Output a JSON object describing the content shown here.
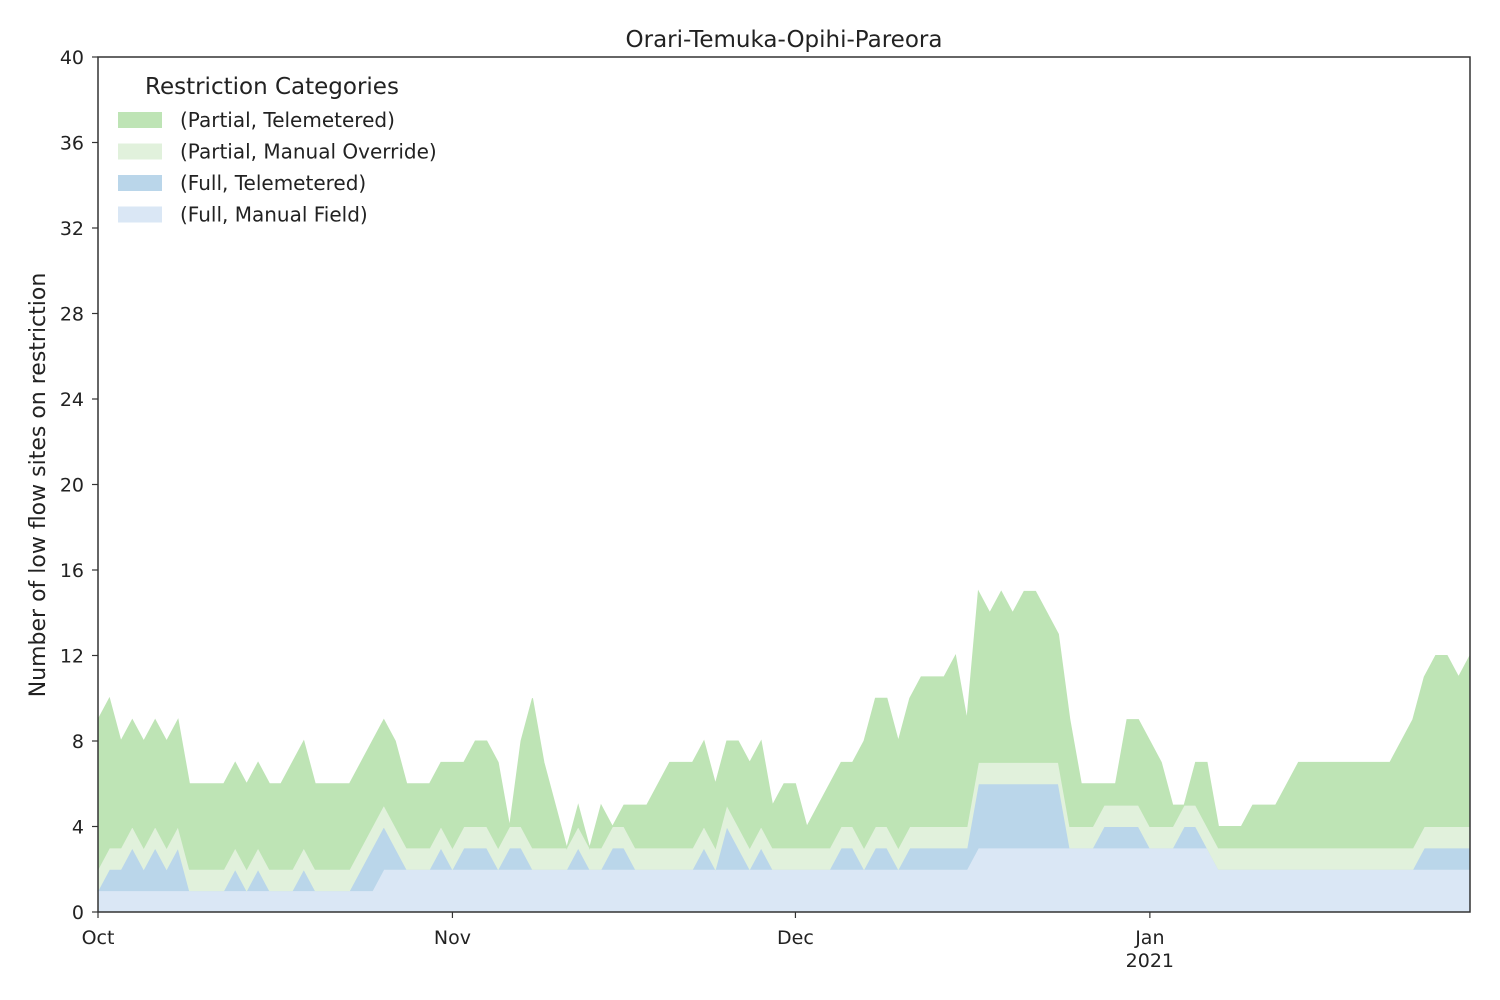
{
  "chart_data": {
    "type": "area",
    "stacked": true,
    "title": "Orari-Temuka-Opihi-Pareora",
    "xlabel": "",
    "ylabel": "Number of low flow sites on restriction",
    "ylim": [
      0,
      40
    ],
    "yticks": [
      0,
      4,
      8,
      12,
      16,
      20,
      24,
      28,
      32,
      36,
      40
    ],
    "xlim": [
      "2020-10-01",
      "2021-01-29"
    ],
    "xticks": [
      {
        "date": "2020-10-01",
        "label": "Oct",
        "sublabel": ""
      },
      {
        "date": "2020-11-01",
        "label": "Nov",
        "sublabel": ""
      },
      {
        "date": "2020-12-01",
        "label": "Dec",
        "sublabel": ""
      },
      {
        "date": "2021-01-01",
        "label": "Jan",
        "sublabel": "2021"
      }
    ],
    "grid": false,
    "legend": {
      "title": "Restriction Categories",
      "placement": "top-left"
    },
    "x": [
      "2020-10-01",
      "2020-10-02",
      "2020-10-03",
      "2020-10-04",
      "2020-10-05",
      "2020-10-06",
      "2020-10-07",
      "2020-10-08",
      "2020-10-09",
      "2020-10-10",
      "2020-10-11",
      "2020-10-12",
      "2020-10-13",
      "2020-10-14",
      "2020-10-15",
      "2020-10-16",
      "2020-10-17",
      "2020-10-18",
      "2020-10-19",
      "2020-10-20",
      "2020-10-21",
      "2020-10-22",
      "2020-10-23",
      "2020-10-24",
      "2020-10-25",
      "2020-10-26",
      "2020-10-27",
      "2020-10-28",
      "2020-10-29",
      "2020-10-30",
      "2020-10-31",
      "2020-11-01",
      "2020-11-02",
      "2020-11-03",
      "2020-11-04",
      "2020-11-05",
      "2020-11-06",
      "2020-11-07",
      "2020-11-08",
      "2020-11-09",
      "2020-11-10",
      "2020-11-11",
      "2020-11-12",
      "2020-11-13",
      "2020-11-14",
      "2020-11-15",
      "2020-11-16",
      "2020-11-17",
      "2020-11-18",
      "2020-11-19",
      "2020-11-20",
      "2020-11-21",
      "2020-11-22",
      "2020-11-23",
      "2020-11-24",
      "2020-11-25",
      "2020-11-26",
      "2020-11-27",
      "2020-11-28",
      "2020-11-29",
      "2020-11-30",
      "2020-12-01",
      "2020-12-02",
      "2020-12-03",
      "2020-12-04",
      "2020-12-05",
      "2020-12-06",
      "2020-12-07",
      "2020-12-08",
      "2020-12-09",
      "2020-12-10",
      "2020-12-11",
      "2020-12-12",
      "2020-12-13",
      "2020-12-14",
      "2020-12-15",
      "2020-12-16",
      "2020-12-17",
      "2020-12-18",
      "2020-12-19",
      "2020-12-20",
      "2020-12-21",
      "2020-12-22",
      "2020-12-23",
      "2020-12-24",
      "2020-12-25",
      "2020-12-26",
      "2020-12-27",
      "2020-12-28",
      "2020-12-29",
      "2020-12-30",
      "2020-12-31",
      "2021-01-01",
      "2021-01-02",
      "2021-01-03",
      "2021-01-04",
      "2021-01-05",
      "2021-01-06",
      "2021-01-07",
      "2021-01-08",
      "2021-01-09",
      "2021-01-10",
      "2021-01-11",
      "2021-01-12",
      "2021-01-13",
      "2021-01-14",
      "2021-01-15",
      "2021-01-16",
      "2021-01-17",
      "2021-01-18",
      "2021-01-19",
      "2021-01-20",
      "2021-01-21",
      "2021-01-22",
      "2021-01-23",
      "2021-01-24",
      "2021-01-25",
      "2021-01-26",
      "2021-01-27",
      "2021-01-28",
      "2021-01-29"
    ],
    "series": [
      {
        "name": "(Full, Manual Field)",
        "color": "#dae7f5",
        "values": [
          1,
          1,
          1,
          1,
          1,
          1,
          1,
          1,
          1,
          1,
          1,
          1,
          1,
          1,
          1,
          1,
          1,
          1,
          1,
          1,
          1,
          1,
          1,
          1,
          1,
          2,
          2,
          2,
          2,
          2,
          2,
          2,
          2,
          2,
          2,
          2,
          2,
          2,
          2,
          2,
          2,
          2,
          2,
          2,
          2,
          2,
          2,
          2,
          2,
          2,
          2,
          2,
          2,
          2,
          2,
          2,
          2,
          2,
          2,
          2,
          2,
          2,
          2,
          2,
          2,
          2,
          2,
          2,
          2,
          2,
          2,
          2,
          2,
          2,
          2,
          2,
          2,
          3,
          3,
          3,
          3,
          3,
          3,
          3,
          3,
          3,
          3,
          3,
          3,
          3,
          3,
          3,
          3,
          3,
          3,
          3,
          3,
          3,
          2,
          2,
          2,
          2,
          2,
          2,
          2,
          2,
          2,
          2,
          2,
          2,
          2,
          2,
          2,
          2,
          2,
          2,
          2,
          2,
          2,
          2,
          2
        ]
      },
      {
        "name": "(Full, Telemetered)",
        "color": "#bad6ea",
        "values": [
          0,
          1,
          1,
          2,
          1,
          2,
          1,
          2,
          0,
          0,
          0,
          0,
          1,
          0,
          1,
          0,
          0,
          0,
          1,
          0,
          0,
          0,
          0,
          1,
          2,
          2,
          1,
          0,
          0,
          0,
          1,
          0,
          1,
          1,
          1,
          0,
          1,
          1,
          0,
          0,
          0,
          0,
          1,
          0,
          0,
          1,
          1,
          0,
          0,
          0,
          0,
          0,
          0,
          1,
          0,
          2,
          1,
          0,
          1,
          0,
          0,
          0,
          0,
          0,
          0,
          1,
          1,
          0,
          1,
          1,
          0,
          1,
          1,
          1,
          1,
          1,
          1,
          3,
          3,
          3,
          3,
          3,
          3,
          3,
          3,
          0,
          0,
          0,
          1,
          1,
          1,
          1,
          0,
          0,
          0,
          1,
          1,
          0,
          0,
          0,
          0,
          0,
          0,
          0,
          0,
          0,
          0,
          0,
          0,
          0,
          0,
          0,
          0,
          0,
          0,
          0,
          1,
          1,
          1,
          1,
          1
        ]
      },
      {
        "name": "(Partial, Manual Override)",
        "color": "#e1f1dc",
        "values": [
          1,
          1,
          1,
          1,
          1,
          1,
          1,
          1,
          1,
          1,
          1,
          1,
          1,
          1,
          1,
          1,
          1,
          1,
          1,
          1,
          1,
          1,
          1,
          1,
          1,
          1,
          1,
          1,
          1,
          1,
          1,
          1,
          1,
          1,
          1,
          1,
          1,
          1,
          1,
          1,
          1,
          1,
          1,
          1,
          1,
          1,
          1,
          1,
          1,
          1,
          1,
          1,
          1,
          1,
          1,
          1,
          1,
          1,
          1,
          1,
          1,
          1,
          1,
          1,
          1,
          1,
          1,
          1,
          1,
          1,
          1,
          1,
          1,
          1,
          1,
          1,
          1,
          1,
          1,
          1,
          1,
          1,
          1,
          1,
          1,
          1,
          1,
          1,
          1,
          1,
          1,
          1,
          1,
          1,
          1,
          1,
          1,
          1,
          1,
          1,
          1,
          1,
          1,
          1,
          1,
          1,
          1,
          1,
          1,
          1,
          1,
          1,
          1,
          1,
          1,
          1,
          1,
          1,
          1,
          1,
          1
        ]
      },
      {
        "name": "(Partial, Telemetered)",
        "color": "#bee4b5",
        "values": [
          7,
          7,
          5,
          5,
          5,
          5,
          5,
          5,
          4,
          4,
          4,
          4,
          4,
          4,
          4,
          4,
          4,
          5,
          5,
          4,
          4,
          4,
          4,
          4,
          4,
          4,
          4,
          3,
          3,
          3,
          3,
          4,
          3,
          4,
          4,
          4,
          0,
          4,
          7,
          4,
          2,
          0,
          1,
          0,
          2,
          0,
          1,
          2,
          2,
          3,
          4,
          4,
          4,
          4,
          3,
          3,
          4,
          4,
          4,
          2,
          3,
          3,
          1,
          2,
          3,
          3,
          3,
          5,
          6,
          6,
          5,
          6,
          7,
          7,
          7,
          8,
          5,
          8,
          7,
          8,
          7,
          8,
          8,
          7,
          6,
          5,
          2,
          2,
          1,
          1,
          4,
          4,
          4,
          3,
          1,
          0,
          2,
          3,
          1,
          1,
          1,
          2,
          2,
          2,
          3,
          4,
          4,
          4,
          4,
          4,
          4,
          4,
          4,
          4,
          5,
          6,
          7,
          8,
          8,
          7,
          8
        ]
      }
    ]
  }
}
